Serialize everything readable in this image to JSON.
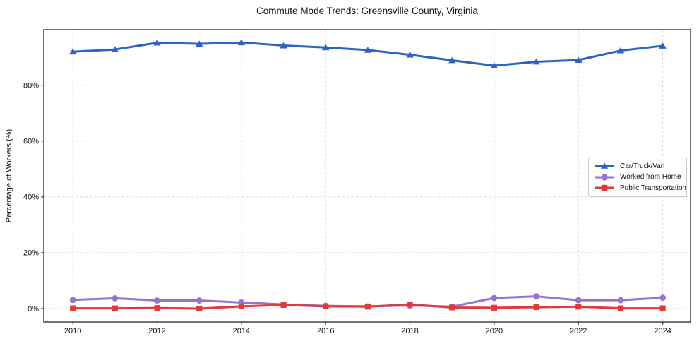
{
  "chart_data": {
    "type": "line",
    "title": "Commute Mode Trends: Greensville County, Virginia",
    "xlabel": "",
    "ylabel": "Percentage of Workers (%)",
    "x": [
      2010,
      2011,
      2012,
      2013,
      2014,
      2015,
      2016,
      2017,
      2018,
      2019,
      2020,
      2021,
      2022,
      2023,
      2024
    ],
    "x_ticks": [
      2010,
      2012,
      2014,
      2016,
      2018,
      2020,
      2022,
      2024
    ],
    "x_tick_labels": [
      "2010",
      "2012",
      "2014",
      "2016",
      "2018",
      "2020",
      "2022",
      "2024"
    ],
    "y_ticks": [
      0,
      20,
      40,
      60,
      80
    ],
    "y_tick_labels": [
      "0%",
      "20%",
      "40%",
      "60%",
      "80%"
    ],
    "xlim": [
      2009.31,
      2024.66
    ],
    "ylim": [
      -4.8,
      99.9
    ],
    "grid": true,
    "legend": {
      "position": "middle-right",
      "border_color": "#cccccc",
      "background": "#ffffff"
    },
    "series": [
      {
        "name": "Car/Truck/Van",
        "marker": "triangle",
        "color": "#2e62c4",
        "values": [
          92.0,
          92.8,
          95.2,
          94.8,
          95.3,
          94.2,
          93.5,
          92.6,
          90.9,
          88.9,
          87.0,
          88.4,
          89.0,
          92.4,
          94.1
        ]
      },
      {
        "name": "Worked from Home",
        "marker": "circle",
        "color": "#9572d6",
        "values": [
          3.1,
          3.7,
          2.9,
          2.9,
          2.2,
          1.5,
          1.0,
          0.8,
          1.1,
          0.7,
          3.8,
          4.4,
          3.0,
          3.0,
          3.9
        ]
      },
      {
        "name": "Public Transportation",
        "marker": "square",
        "color": "#e03a3a",
        "values": [
          0.1,
          0.1,
          0.2,
          0.0,
          0.8,
          1.3,
          0.8,
          0.7,
          1.5,
          0.4,
          0.3,
          0.5,
          0.7,
          0.1,
          0.1
        ]
      }
    ]
  }
}
